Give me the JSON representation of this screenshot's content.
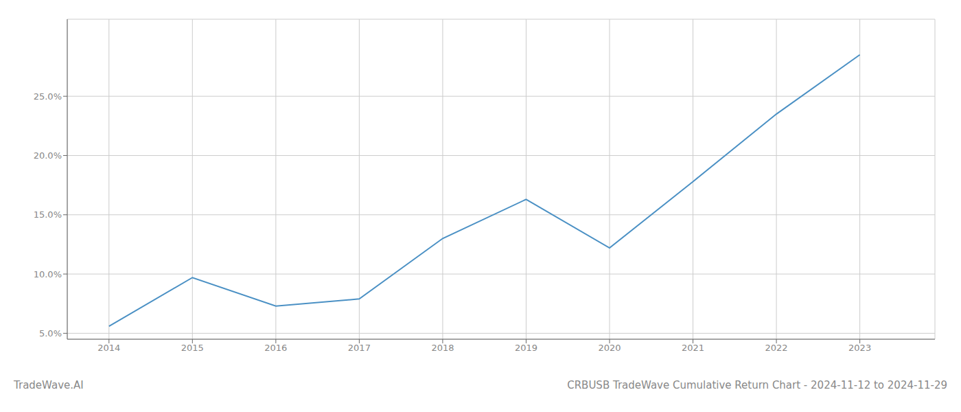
{
  "chart_data": {
    "type": "line",
    "title": "CRBUSB TradeWave Cumulative Return Chart - 2024-11-12 to 2024-11-29",
    "annotations": [
      "TradeWave.AI"
    ],
    "x": [
      2014,
      2015,
      2016,
      2017,
      2018,
      2019,
      2020,
      2021,
      2022,
      2023
    ],
    "values": [
      5.6,
      9.7,
      7.3,
      7.9,
      13.0,
      16.3,
      12.2,
      17.8,
      23.5,
      28.5
    ],
    "color": "#4a90c4",
    "xlim": [
      2013.5,
      2023.9
    ],
    "xticks": [
      2014,
      2015,
      2016,
      2017,
      2018,
      2019,
      2020,
      2021,
      2022,
      2023
    ],
    "ylim": [
      4.5,
      31.5
    ],
    "yticks": [
      {
        "value": 5.0,
        "label": "5.0%"
      },
      {
        "value": 10.0,
        "label": "10.0%"
      },
      {
        "value": 15.0,
        "label": "15.0%"
      },
      {
        "value": 20.0,
        "label": "20.0%"
      },
      {
        "value": 25.0,
        "label": "25.0%"
      }
    ],
    "grid": true
  }
}
